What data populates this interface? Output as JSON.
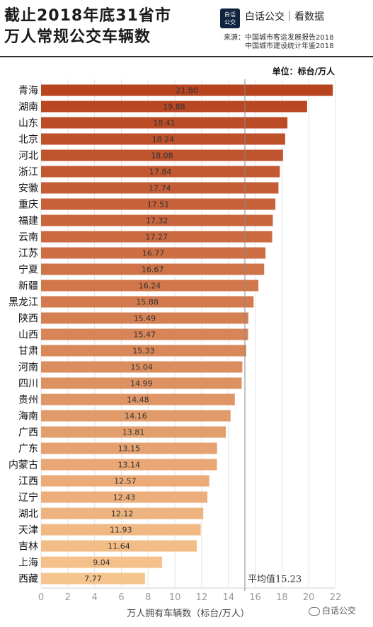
{
  "header": {
    "title_line1": "截止2018年底31省市",
    "title_line2": "万人常规公交车辆数",
    "logo_line1": "白话",
    "logo_line2": "公交",
    "brand": "白话公交｜看数据",
    "source_line1": "来源：中国城市客运发展报告2018",
    "source_line2": "中国城市建设统计年鉴2018",
    "unit": "单位：标台/万人"
  },
  "footer": {
    "brand": "白话公交"
  },
  "chart_data": {
    "type": "bar",
    "orientation": "horizontal",
    "xlabel": "万人拥有车辆数（标台/万人）",
    "ylabel": "",
    "xlim": [
      0,
      22
    ],
    "xticks": [
      0,
      2,
      4,
      6,
      8,
      10,
      12,
      14,
      16,
      18,
      20,
      22
    ],
    "grid": true,
    "average": {
      "label": "平均值15.23",
      "value": 15.23
    },
    "color_top": "#b8431f",
    "color_bottom": "#f6c58e",
    "categories": [
      "青海",
      "湖南",
      "山东",
      "北京",
      "河北",
      "浙江",
      "安徽",
      "重庆",
      "福建",
      "云南",
      "江苏",
      "宁夏",
      "新疆",
      "黑龙江",
      "陕西",
      "山西",
      "甘肃",
      "河南",
      "四川",
      "贵州",
      "海南",
      "广西",
      "广东",
      "内蒙古",
      "江西",
      "辽宁",
      "湖北",
      "天津",
      "吉林",
      "上海",
      "西藏"
    ],
    "values": [
      21.8,
      19.88,
      18.41,
      18.24,
      18.08,
      17.84,
      17.74,
      17.51,
      17.32,
      17.27,
      16.77,
      16.67,
      16.24,
      15.88,
      15.49,
      15.47,
      15.33,
      15.04,
      14.99,
      14.48,
      14.16,
      13.81,
      13.15,
      13.14,
      12.57,
      12.43,
      12.12,
      11.93,
      11.64,
      9.04,
      7.77
    ],
    "value_labels": [
      "21.80",
      "19.88",
      "18.41",
      "18.24",
      "18.08",
      "17.84",
      "17.74",
      "17.51",
      "17.32",
      "17.27",
      "16.77",
      "16.67",
      "16.24",
      "15.88",
      "15.49",
      "15.47",
      "15.33",
      "15.04",
      "14.99",
      "14.48",
      "14.16",
      "13.81",
      "13.15",
      "13.14",
      "12.57",
      "12.43",
      "12.12",
      "11.93",
      "11.64",
      "9.04",
      "7.77"
    ]
  }
}
